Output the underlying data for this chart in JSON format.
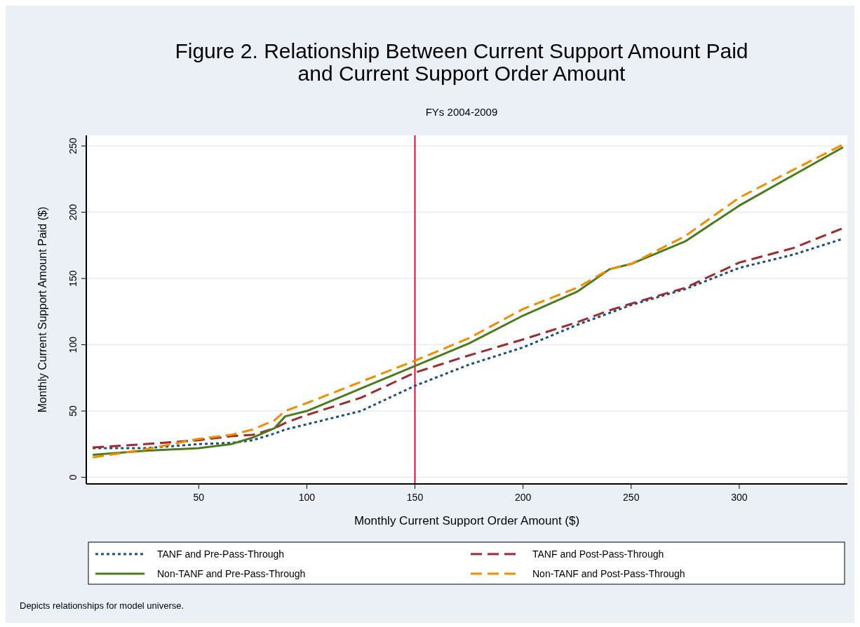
{
  "chart_data": {
    "type": "line",
    "title": "Figure 2. Relationship Between Current Support Amount Paid\nand Current Support Order Amount",
    "subtitle": "FYs 2004-2009",
    "xlabel": "Monthly Current Support Order Amount ($)",
    "ylabel": "Monthly Current Support Amount Paid ($)",
    "x": [
      1,
      25,
      50,
      65,
      75,
      85,
      90,
      100,
      125,
      150,
      175,
      200,
      225,
      240,
      250,
      275,
      300,
      325,
      348
    ],
    "series": [
      {
        "name": "TANF and Pre-Pass-Through",
        "color": "#1f4e79",
        "line_style": "dotted",
        "values": [
          22,
          22,
          25,
          26,
          28,
          33,
          36,
          40,
          50,
          69,
          85,
          98,
          115,
          124,
          130,
          142,
          158,
          168,
          180
        ]
      },
      {
        "name": "TANF and Post-Pass-Through",
        "color": "#9b2d30",
        "line_style": "dashed",
        "values": [
          22.5,
          25,
          28,
          31,
          32,
          37,
          41,
          47,
          60,
          79,
          92,
          104,
          117,
          126,
          131,
          143,
          162,
          173,
          188
        ]
      },
      {
        "name": "Non-TANF and Pre-Pass-Through",
        "color": "#4d7a1f",
        "line_style": "solid",
        "values": [
          17,
          20,
          22,
          25,
          30,
          37,
          46,
          50,
          67,
          84,
          101,
          122,
          140,
          157,
          161,
          178,
          205,
          228,
          249
        ]
      },
      {
        "name": "Non-TANF and Post-Pass-Through",
        "color": "#f08c00",
        "line_style": "dashed",
        "values": [
          15,
          21,
          29,
          32,
          36,
          43,
          50,
          56,
          72,
          88,
          105,
          127,
          143,
          157,
          161,
          182,
          211,
          232,
          251
        ]
      }
    ],
    "xlim": [
      -2,
      350
    ],
    "ylim": [
      -5,
      258
    ],
    "xticks": [
      50,
      100,
      150,
      200,
      250,
      300
    ],
    "yticks": [
      0,
      50,
      100,
      150,
      200,
      250
    ],
    "grid": "y",
    "legend": "bottom",
    "ref_lines": [
      {
        "axis": "x",
        "value": 150,
        "color": "#d0103a"
      }
    ],
    "annotations": [
      "Depicts relationships for model universe."
    ]
  }
}
